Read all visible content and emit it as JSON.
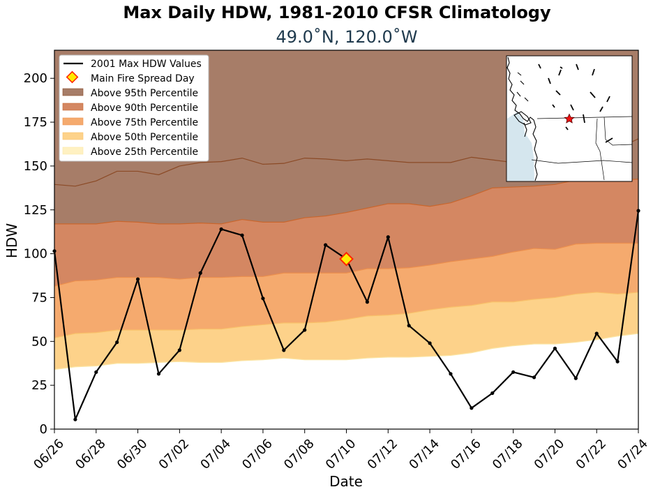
{
  "chart_data": {
    "type": "area",
    "title": "Max Daily HDW, 1981-2010 CFSR Climatology",
    "subtitle": "49.0˚N, 120.0˚W",
    "xlabel": "Date",
    "ylabel": "HDW",
    "ylim": [
      0,
      216
    ],
    "yticks": [
      0,
      25,
      50,
      75,
      100,
      125,
      150,
      175,
      200
    ],
    "x": [
      "06/26",
      "06/27",
      "06/28",
      "06/29",
      "06/30",
      "07/01",
      "07/02",
      "07/03",
      "07/04",
      "07/05",
      "07/06",
      "07/07",
      "07/08",
      "07/09",
      "07/10",
      "07/11",
      "07/12",
      "07/13",
      "07/14",
      "07/15",
      "07/16",
      "07/17",
      "07/18",
      "07/19",
      "07/20",
      "07/21",
      "07/22",
      "07/23",
      "07/24"
    ],
    "xtick_labels": [
      "06/26",
      "06/28",
      "06/30",
      "07/02",
      "07/04",
      "07/06",
      "07/08",
      "07/10",
      "07/12",
      "07/14",
      "07/16",
      "07/18",
      "07/20",
      "07/22",
      "07/24"
    ],
    "grid": false,
    "legend_position": "top-left",
    "percentiles": [
      {
        "name": "Above 25th Percentile",
        "color": "#fff1c2",
        "edge": "#fbe6a6",
        "values": [
          34,
          35.5,
          36,
          37.5,
          37.5,
          38,
          38.5,
          38,
          38,
          39,
          39.5,
          40.5,
          39.5,
          39.5,
          39.5,
          40.5,
          41,
          41,
          41.5,
          42,
          43.5,
          46,
          47.5,
          48.5,
          48.5,
          49.5,
          51,
          53,
          54.5
        ]
      },
      {
        "name": "Above 50th Percentile",
        "color": "#fdd28a",
        "edge": "#f9c16a",
        "values": [
          52,
          54.5,
          55,
          56.5,
          56.5,
          56.5,
          56.5,
          57,
          57,
          58.5,
          59.5,
          60.5,
          60.5,
          61,
          62.5,
          64.5,
          65,
          66,
          68,
          69.5,
          70.5,
          72.5,
          72.5,
          74,
          75,
          77,
          78,
          77,
          78
        ]
      },
      {
        "name": "Above 75th Percentile",
        "color": "#f5aa6e",
        "edge": "#ec8f4d",
        "values": [
          81.5,
          84.5,
          85,
          86.5,
          86.5,
          86.5,
          85.5,
          86.5,
          86.5,
          87,
          87,
          89,
          89,
          89,
          89,
          91.5,
          91.5,
          92,
          93.5,
          95.5,
          97,
          98.5,
          101,
          103,
          102.5,
          105.5,
          106,
          106,
          106
        ]
      },
      {
        "name": "Above 90th Percentile",
        "color": "#d48762",
        "edge": "#c9662d",
        "values": [
          117,
          117,
          117,
          118.5,
          118,
          117,
          117,
          117.5,
          117,
          119.5,
          118,
          118,
          120.5,
          121.5,
          123.5,
          126,
          128.5,
          128.5,
          127,
          129,
          133,
          137.5,
          138,
          138.5,
          139.5,
          142,
          142,
          142,
          142.5
        ]
      },
      {
        "name": "Above 95th Percentile",
        "color": "#a77d68",
        "edge": "#8b4a26",
        "values": [
          139.5,
          138.5,
          141.5,
          147,
          147,
          145,
          150,
          152,
          152.5,
          154.5,
          151,
          151.5,
          154.5,
          154,
          153,
          154,
          153,
          152,
          152,
          152,
          155,
          153.5,
          152,
          152,
          153,
          153,
          155,
          160,
          165.5
        ]
      }
    ],
    "top_fill_color": "#a77d68",
    "series": [
      {
        "name": "2001 Max HDW Values",
        "color": "#000000",
        "values": [
          101.5,
          5.5,
          32.5,
          49.5,
          85.5,
          31.5,
          45,
          89,
          114,
          110.5,
          74.5,
          45,
          56.5,
          105,
          97,
          72.5,
          109.5,
          59,
          49,
          31.5,
          12,
          20.5,
          32.5,
          29.5,
          46,
          29,
          54.5,
          38.5,
          124.5
        ]
      }
    ],
    "annotation": {
      "name": "Main Fire Spread Day",
      "x": "07/10",
      "y": 97,
      "fill": "#ffeb00",
      "edge": "#ff2600"
    }
  },
  "legend": {
    "items": [
      {
        "label": "2001 Max HDW Values"
      },
      {
        "label": "Main Fire Spread Day"
      },
      {
        "label": "Above 95th Percentile",
        "color": "#a77d68"
      },
      {
        "label": "Above 90th Percentile",
        "color": "#d48762"
      },
      {
        "label": "Above 75th Percentile",
        "color": "#f5aa6e"
      },
      {
        "label": "Above 50th Percentile",
        "color": "#fdd28a"
      },
      {
        "label": "Above 25th Percentile",
        "color": "#fff1c2"
      }
    ]
  },
  "inset_map": {
    "marker_icon": "red-star-icon",
    "ocean_color": "#d5e6ee"
  }
}
